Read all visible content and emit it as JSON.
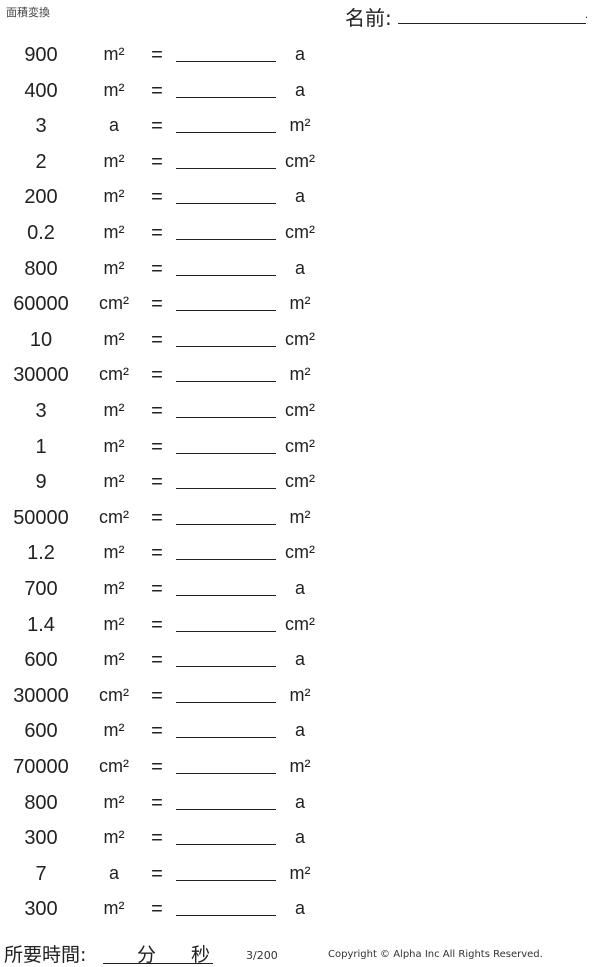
{
  "header": {
    "title": "面積変換",
    "name_label": "名前:",
    "name_end": "."
  },
  "equals": "=",
  "problems": [
    {
      "value": "900",
      "from": "m²",
      "to": "a"
    },
    {
      "value": "400",
      "from": "m²",
      "to": "a"
    },
    {
      "value": "3",
      "from": "a",
      "to": "m²"
    },
    {
      "value": "2",
      "from": "m²",
      "to": "cm²"
    },
    {
      "value": "200",
      "from": "m²",
      "to": "a"
    },
    {
      "value": "0.2",
      "from": "m²",
      "to": "cm²"
    },
    {
      "value": "800",
      "from": "m²",
      "to": "a"
    },
    {
      "value": "60000",
      "from": "cm²",
      "to": "m²"
    },
    {
      "value": "10",
      "from": "m²",
      "to": "cm²"
    },
    {
      "value": "30000",
      "from": "cm²",
      "to": "m²"
    },
    {
      "value": "3",
      "from": "m²",
      "to": "cm²"
    },
    {
      "value": "1",
      "from": "m²",
      "to": "cm²"
    },
    {
      "value": "9",
      "from": "m²",
      "to": "cm²"
    },
    {
      "value": "50000",
      "from": "cm²",
      "to": "m²"
    },
    {
      "value": "1.2",
      "from": "m²",
      "to": "cm²"
    },
    {
      "value": "700",
      "from": "m²",
      "to": "a"
    },
    {
      "value": "1.4",
      "from": "m²",
      "to": "cm²"
    },
    {
      "value": "600",
      "from": "m²",
      "to": "a"
    },
    {
      "value": "30000",
      "from": "cm²",
      "to": "m²"
    },
    {
      "value": "600",
      "from": "m²",
      "to": "a"
    },
    {
      "value": "70000",
      "from": "cm²",
      "to": "m²"
    },
    {
      "value": "800",
      "from": "m²",
      "to": "a"
    },
    {
      "value": "300",
      "from": "m²",
      "to": "a"
    },
    {
      "value": "7",
      "from": "a",
      "to": "m²"
    },
    {
      "value": "300",
      "from": "m²",
      "to": "a"
    }
  ],
  "footer": {
    "time_label": "所要時間:",
    "minutes": "分",
    "seconds": "秒",
    "page": "3/200",
    "copyright": "Copyright © Alpha Inc All Rights Reserved."
  }
}
